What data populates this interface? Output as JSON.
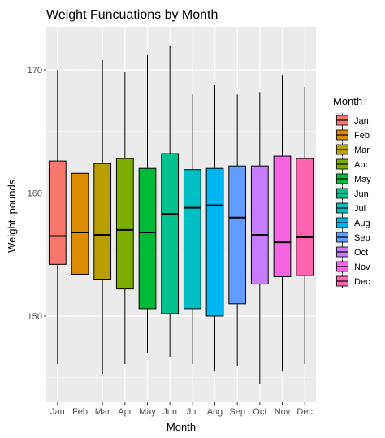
{
  "chart_data": {
    "type": "box",
    "title": "Weight Funcuations by Month",
    "xlabel": "Month",
    "ylabel": "Weight..pounds.",
    "ylim": [
      143,
      173.5
    ],
    "yticks": [
      150,
      160,
      170
    ],
    "ytick_labels": [
      "150",
      "160",
      "170"
    ],
    "grid": true,
    "legend": {
      "title": "Month",
      "position": "right"
    },
    "categories": [
      "Jan",
      "Feb",
      "Mar",
      "Apr",
      "May",
      "Jun",
      "Jul",
      "Aug",
      "Sep",
      "Oct",
      "Nov",
      "Dec"
    ],
    "colors": [
      "#F8766D",
      "#DE8C00",
      "#B79F00",
      "#7CAE00",
      "#00BA38",
      "#00C08B",
      "#00BFC4",
      "#00B4F0",
      "#619CFF",
      "#C77CFF",
      "#F564E3",
      "#FF64B0"
    ],
    "boxes": [
      {
        "min": 146.1,
        "q1": 154.2,
        "median": 156.5,
        "q3": 162.6,
        "max": 170.0
      },
      {
        "min": 146.5,
        "q1": 153.4,
        "median": 156.8,
        "q3": 161.6,
        "max": 169.8
      },
      {
        "min": 145.3,
        "q1": 153.0,
        "median": 156.6,
        "q3": 162.4,
        "max": 170.8
      },
      {
        "min": 146.1,
        "q1": 152.2,
        "median": 157.0,
        "q3": 162.8,
        "max": 169.8
      },
      {
        "min": 147.0,
        "q1": 150.6,
        "median": 156.8,
        "q3": 162.0,
        "max": 171.2
      },
      {
        "min": 146.7,
        "q1": 150.2,
        "median": 158.3,
        "q3": 163.2,
        "max": 172.0
      },
      {
        "min": 146.1,
        "q1": 150.6,
        "median": 158.8,
        "q3": 161.9,
        "max": 168.0
      },
      {
        "min": 145.5,
        "q1": 150.0,
        "median": 159.0,
        "q3": 162.0,
        "max": 168.8
      },
      {
        "min": 145.9,
        "q1": 151.0,
        "median": 158.0,
        "q3": 162.2,
        "max": 168.0
      },
      {
        "min": 144.5,
        "q1": 152.6,
        "median": 156.6,
        "q3": 162.2,
        "max": 168.2
      },
      {
        "min": 145.5,
        "q1": 153.2,
        "median": 156.0,
        "q3": 163.0,
        "max": 169.6
      },
      {
        "min": 146.1,
        "q1": 153.3,
        "median": 156.4,
        "q3": 162.8,
        "max": 168.6
      }
    ]
  }
}
